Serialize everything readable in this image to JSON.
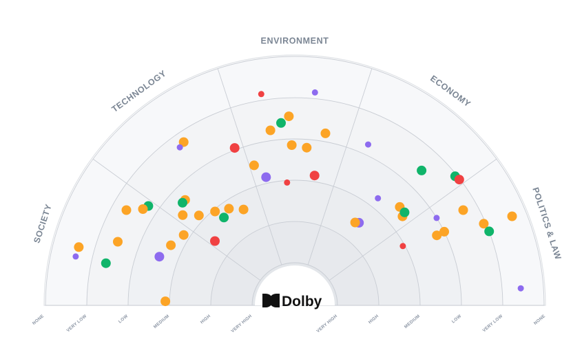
{
  "sectors": [
    "SOCIETY",
    "TECHNOLOGY",
    "ENVIRONMENT",
    "ECONOMY",
    "POLITICS & LAW"
  ],
  "rings": [
    "NONE",
    "VERY LOW",
    "LOW",
    "MEDIUM",
    "HIGH",
    "VERY HIGH"
  ],
  "logo": {
    "text": "Dolby",
    "icon": "dolby-double-d-icon"
  },
  "colors": {
    "orange": "#fca426",
    "green": "#10b46a",
    "red": "#f04142",
    "purple": "#8d6bef",
    "ring_outer": "#f6f7f9",
    "ring_inner": "#e6e8ec",
    "grid": "#c8ccd3",
    "label": "#7b8694"
  },
  "points": [
    {
      "color": "orange",
      "size": "large",
      "sector": 0,
      "level": 0.62,
      "angle": 0.42
    },
    {
      "color": "purple",
      "size": "small",
      "sector": 0,
      "level": 0.6,
      "angle": 0.35
    },
    {
      "color": "green",
      "size": "large",
      "sector": 0,
      "level": 1.35,
      "angle": 0.35
    },
    {
      "color": "orange",
      "size": "large",
      "sector": 0,
      "level": 1.48,
      "angle": 0.55
    },
    {
      "color": "orange",
      "size": "large",
      "sector": 0,
      "level": 1.35,
      "angle": 0.82
    },
    {
      "color": "green",
      "size": "large",
      "sector": 0,
      "level": 1.75,
      "angle": 0.95
    },
    {
      "color": "orange",
      "size": "large",
      "sector": 0,
      "level": 1.68,
      "angle": 0.9
    },
    {
      "color": "purple",
      "size": "large",
      "sector": 0,
      "level": 2.55,
      "angle": 0.55
    },
    {
      "color": "orange",
      "size": "large",
      "sector": 0,
      "level": 2.7,
      "angle": 0.72
    },
    {
      "color": "orange",
      "size": "large",
      "sector": 0,
      "level": 2.85,
      "angle": 0.9
    },
    {
      "color": "orange",
      "size": "large",
      "sector": 0,
      "level": 2.9,
      "angle": 0.05
    },
    {
      "color": "orange",
      "size": "large",
      "sector": 1,
      "level": 1.25,
      "angle": 0.55
    },
    {
      "color": "purple",
      "size": "small",
      "sector": 1,
      "level": 1.3,
      "angle": 0.5
    },
    {
      "color": "orange",
      "size": "large",
      "sector": 1,
      "level": 2.35,
      "angle": 0.22
    },
    {
      "color": "green",
      "size": "large",
      "sector": 1,
      "level": 2.35,
      "angle": 0.18
    },
    {
      "color": "orange",
      "size": "large",
      "sector": 1,
      "level": 2.55,
      "angle": 0.08
    },
    {
      "color": "red",
      "size": "large",
      "sector": 1,
      "level": 1.95,
      "angle": 0.92
    },
    {
      "color": "orange",
      "size": "large",
      "sector": 1,
      "level": 2.85,
      "angle": 0.2
    },
    {
      "color": "red",
      "size": "large",
      "sector": 1,
      "level": 3.55,
      "angle": 0.08
    },
    {
      "color": "orange",
      "size": "large",
      "sector": 1,
      "level": 3.4,
      "angle": 0.72
    },
    {
      "color": "orange",
      "size": "large",
      "sector": 1,
      "level": 3.2,
      "angle": 0.55
    },
    {
      "color": "orange",
      "size": "large",
      "sector": 1,
      "level": 3.05,
      "angle": 0.38
    },
    {
      "color": "green",
      "size": "large",
      "sector": 1,
      "level": 3.3,
      "angle": 0.42
    },
    {
      "color": "red",
      "size": "small",
      "sector": 2,
      "level": 0.85,
      "angle": 0.25
    },
    {
      "color": "purple",
      "size": "small",
      "sector": 2,
      "level": 0.85,
      "angle": 0.65
    },
    {
      "color": "orange",
      "size": "large",
      "sector": 2,
      "level": 1.75,
      "angle": 0.28
    },
    {
      "color": "green",
      "size": "large",
      "sector": 2,
      "level": 1.6,
      "angle": 0.38
    },
    {
      "color": "orange",
      "size": "large",
      "sector": 2,
      "level": 1.45,
      "angle": 0.45
    },
    {
      "color": "orange",
      "size": "large",
      "sector": 2,
      "level": 1.8,
      "angle": 0.78
    },
    {
      "color": "orange",
      "size": "large",
      "sector": 2,
      "level": 2.15,
      "angle": 0.47
    },
    {
      "color": "orange",
      "size": "large",
      "sector": 2,
      "level": 2.2,
      "angle": 0.62
    },
    {
      "color": "purple",
      "size": "large",
      "sector": 2,
      "level": 2.85,
      "angle": 0.15
    },
    {
      "color": "red",
      "size": "small",
      "sector": 2,
      "level": 3.05,
      "angle": 0.4
    },
    {
      "color": "red",
      "size": "large",
      "sector": 2,
      "level": 2.85,
      "angle": 0.74
    },
    {
      "color": "orange",
      "size": "large",
      "sector": 2,
      "level": 2.5,
      "angle": 0.05
    },
    {
      "color": "purple",
      "size": "small",
      "sector": 3,
      "level": 1.75,
      "angle": 0.18
    },
    {
      "color": "green",
      "size": "large",
      "sector": 3,
      "level": 1.55,
      "angle": 0.7
    },
    {
      "color": "green",
      "size": "large",
      "sector": 3,
      "level": 1.05,
      "angle": 0.92
    },
    {
      "color": "red",
      "size": "large",
      "sector": 3,
      "level": 1.02,
      "angle": 0.96
    },
    {
      "color": "purple",
      "size": "small",
      "sector": 3,
      "level": 2.75,
      "angle": 0.55
    },
    {
      "color": "orange",
      "size": "large",
      "sector": 3,
      "level": 2.55,
      "angle": 0.8
    },
    {
      "color": "orange",
      "size": "large",
      "sector": 3,
      "level": 2.65,
      "angle": 0.9
    },
    {
      "color": "green",
      "size": "large",
      "sector": 3,
      "level": 2.55,
      "angle": 0.88
    },
    {
      "color": "purple",
      "size": "large",
      "sector": 3,
      "level": 3.5,
      "angle": 0.55
    },
    {
      "color": "orange",
      "size": "large",
      "sector": 3,
      "level": 3.55,
      "angle": 0.5
    },
    {
      "color": "purple",
      "size": "small",
      "sector": 4,
      "level": 0.55,
      "angle": 0.88
    },
    {
      "color": "orange",
      "size": "large",
      "sector": 4,
      "level": 0.35,
      "angle": 0.38
    },
    {
      "color": "orange",
      "size": "large",
      "sector": 4,
      "level": 1.05,
      "angle": 0.35
    },
    {
      "color": "green",
      "size": "large",
      "sector": 4,
      "level": 1.0,
      "angle": 0.42
    },
    {
      "color": "orange",
      "size": "large",
      "sector": 4,
      "level": 1.35,
      "angle": 0.18
    },
    {
      "color": "purple",
      "size": "small",
      "sector": 4,
      "level": 2.0,
      "angle": 0.12
    },
    {
      "color": "orange",
      "size": "large",
      "sector": 4,
      "level": 2.0,
      "angle": 0.27
    },
    {
      "color": "red",
      "size": "small",
      "sector": 4,
      "level": 3.05,
      "angle": 0.2
    },
    {
      "color": "orange",
      "size": "large",
      "sector": 4,
      "level": 2.2,
      "angle": 0.27
    }
  ]
}
